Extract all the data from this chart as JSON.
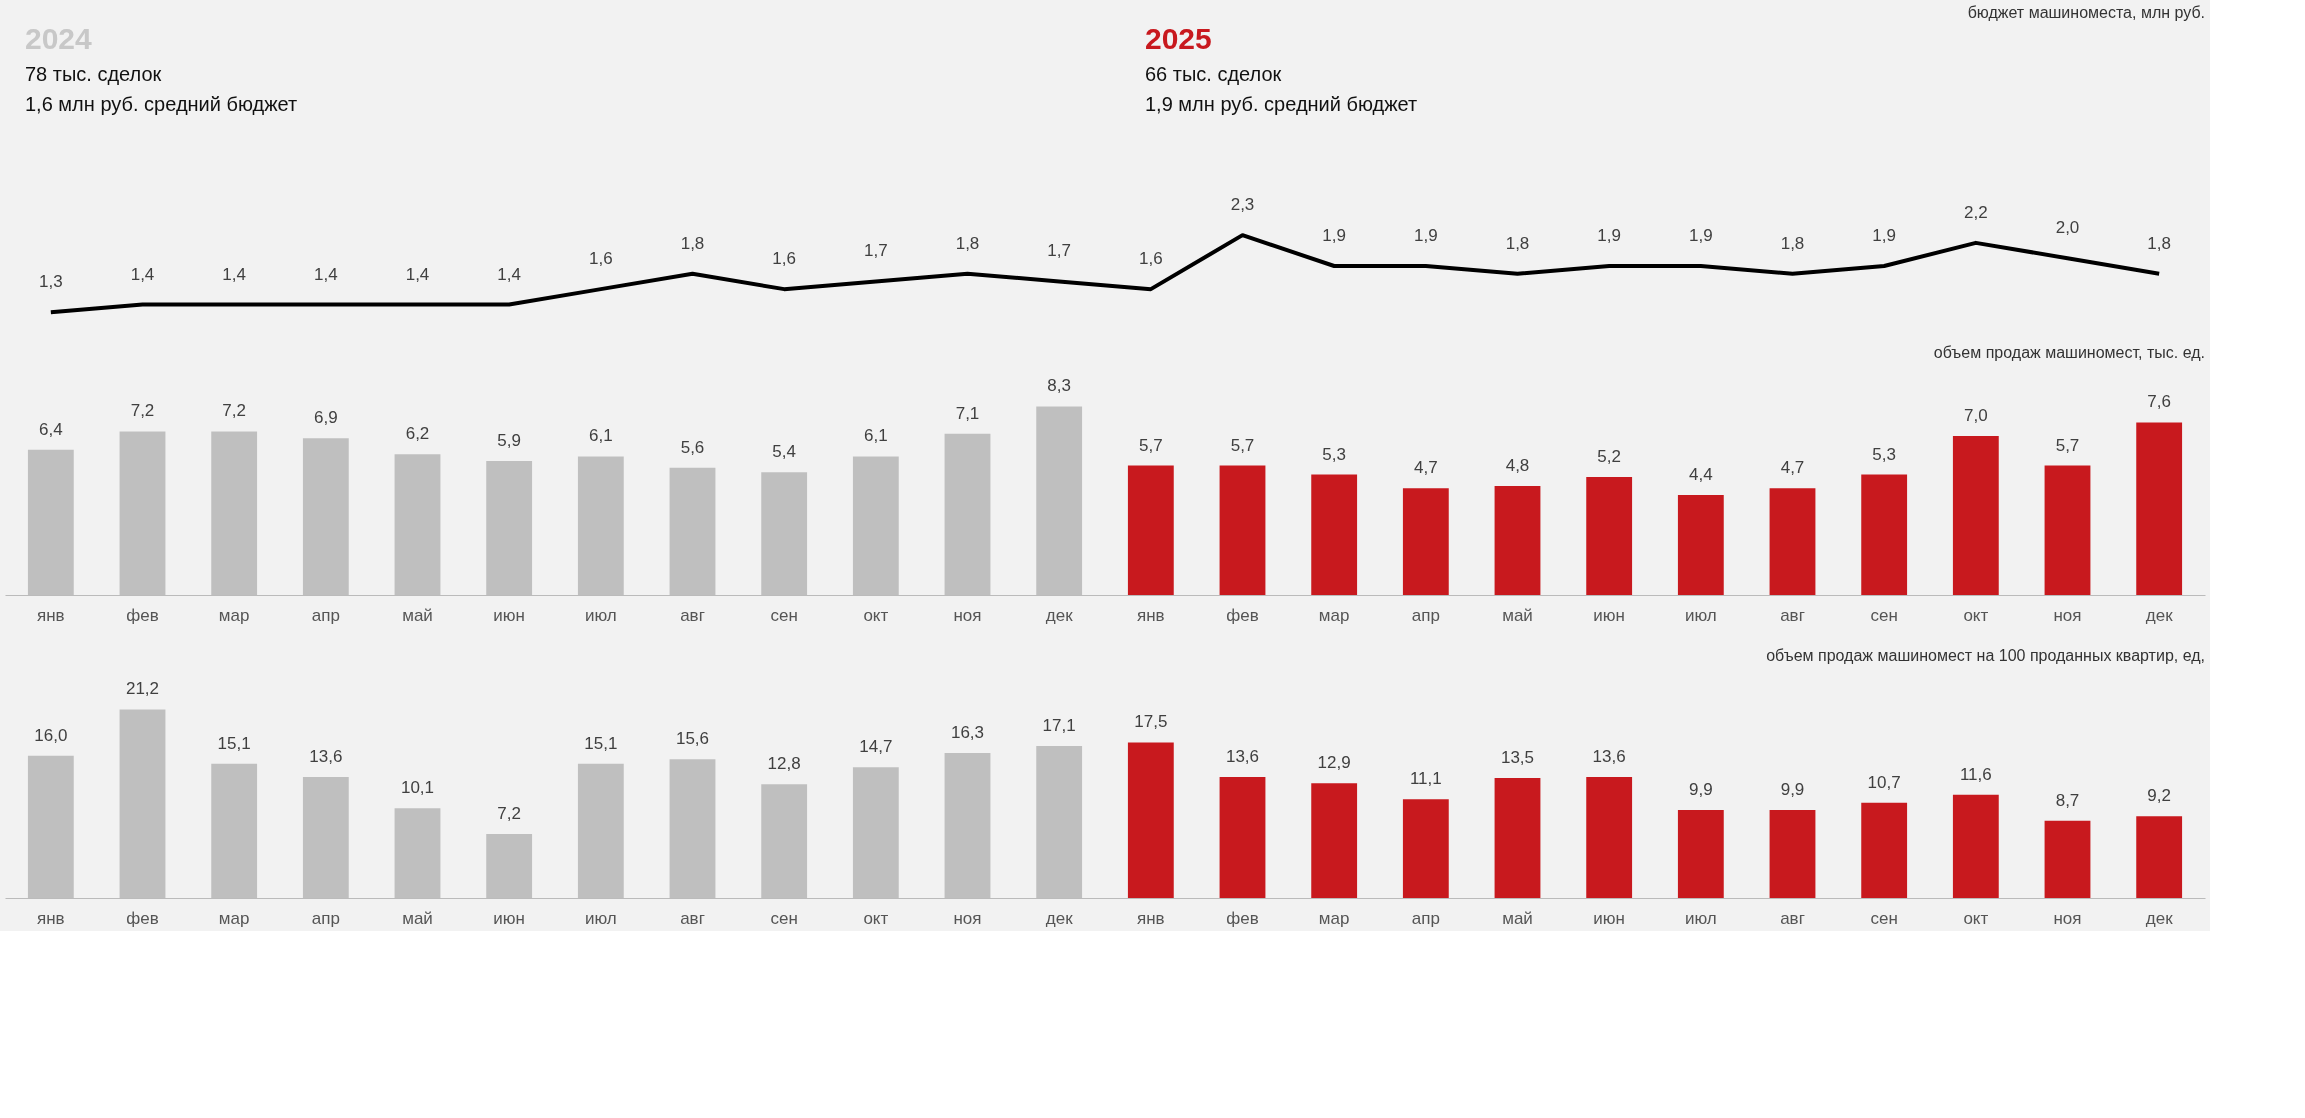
{
  "chart_data": [
    {
      "type": "line",
      "title": "бюджет машиноместа, млн руб.",
      "categories": [
        null,
        null,
        null,
        null,
        null,
        null,
        null,
        null,
        null,
        null,
        null,
        null,
        null,
        null,
        null,
        null,
        null,
        null,
        null,
        null,
        null,
        null,
        null,
        null
      ],
      "tick_labels": false,
      "marker": "none",
      "series": [
        {
          "color": "#000000",
          "values": [
            1.3,
            1.4,
            1.4,
            1.4,
            1.4,
            1.4,
            1.6,
            1.8,
            1.6,
            1.7,
            1.8,
            1.7,
            1.6,
            2.3,
            1.9,
            1.9,
            1.8,
            1.9,
            1.9,
            1.8,
            1.9,
            2.2,
            2.0,
            1.8
          ],
          "value_labels": [
            "1,3",
            "1,4",
            "1,4",
            "1,4",
            "1,4",
            "1,4",
            "1,6",
            "1,8",
            "1,6",
            "1,7",
            "1,8",
            "1,7",
            "1,6",
            "2,3",
            "1,9",
            "1,9",
            "1,8",
            "1,9",
            "1,9",
            "1,8",
            "1,9",
            "2,2",
            "2,0",
            "1,8"
          ]
        }
      ],
      "annotations": [
        "2024",
        "78 тыс. сделок",
        "1,6 млн руб. средний бюджет",
        "2025",
        "66 тыс. сделок",
        "1,9 млн руб. средний бюджет"
      ]
    },
    {
      "type": "bar",
      "title": "объем продаж машиномест, тыс. ед.",
      "categories": [
        "янв",
        "фев",
        "мар",
        "апр",
        "май",
        "июн",
        "июл",
        "авг",
        "сен",
        "окт",
        "ноя",
        "дек",
        "янв",
        "фев",
        "мар",
        "апр",
        "май",
        "июн",
        "июл",
        "авг",
        "сен",
        "окт",
        "ноя",
        "дек"
      ],
      "tick_labels": "x",
      "values": [
        6.4,
        7.2,
        7.2,
        6.9,
        6.2,
        5.9,
        6.1,
        5.6,
        5.4,
        6.1,
        7.1,
        8.3,
        5.7,
        5.7,
        5.3,
        4.7,
        4.8,
        5.2,
        4.4,
        4.7,
        5.3,
        7.0,
        5.7,
        7.6
      ],
      "value_labels": [
        "6,4",
        "7,2",
        "7,2",
        "6,9",
        "6,2",
        "5,9",
        "6,1",
        "5,6",
        "5,4",
        "6,1",
        "7,1",
        "8,3",
        "5,7",
        "5,7",
        "5,3",
        "4,7",
        "4,8",
        "5,2",
        "4,4",
        "4,7",
        "5,3",
        "7,0",
        "5,7",
        "7,6"
      ],
      "colors": [
        "#bfbfbf",
        "#bfbfbf",
        "#bfbfbf",
        "#bfbfbf",
        "#bfbfbf",
        "#bfbfbf",
        "#bfbfbf",
        "#bfbfbf",
        "#bfbfbf",
        "#bfbfbf",
        "#bfbfbf",
        "#bfbfbf",
        "#c8191e",
        "#c8191e",
        "#c8191e",
        "#c8191e",
        "#c8191e",
        "#c8191e",
        "#c8191e",
        "#c8191e",
        "#c8191e",
        "#c8191e",
        "#c8191e",
        "#c8191e"
      ]
    },
    {
      "type": "bar",
      "title": "объем продаж машиномест на 100 проданных квартир, ед,",
      "categories": [
        "янв",
        "фев",
        "мар",
        "апр",
        "май",
        "июн",
        "июл",
        "авг",
        "сен",
        "окт",
        "ноя",
        "дек",
        "янв",
        "фев",
        "мар",
        "апр",
        "май",
        "июн",
        "июл",
        "авг",
        "сен",
        "окт",
        "ноя",
        "дек"
      ],
      "tick_labels": "x",
      "values": [
        16.0,
        21.2,
        15.1,
        13.6,
        10.1,
        7.2,
        15.1,
        15.6,
        12.8,
        14.7,
        16.3,
        17.1,
        17.5,
        13.6,
        12.9,
        11.1,
        13.5,
        13.6,
        9.9,
        9.9,
        10.7,
        11.6,
        8.7,
        9.2
      ],
      "value_labels": [
        "16,0",
        "21,2",
        "15,1",
        "13,6",
        "10,1",
        "7,2",
        "15,1",
        "15,6",
        "12,8",
        "14,7",
        "16,3",
        "17,1",
        "17,5",
        "13,6",
        "12,9",
        "11,1",
        "13,5",
        "13,6",
        "9,9",
        "9,9",
        "10,7",
        "11,6",
        "8,7",
        "9,2"
      ],
      "colors": [
        "#bfbfbf",
        "#bfbfbf",
        "#bfbfbf",
        "#bfbfbf",
        "#bfbfbf",
        "#bfbfbf",
        "#bfbfbf",
        "#bfbfbf",
        "#bfbfbf",
        "#bfbfbf",
        "#bfbfbf",
        "#bfbfbf",
        "#c8191e",
        "#c8191e",
        "#c8191e",
        "#c8191e",
        "#c8191e",
        "#c8191e",
        "#c8191e",
        "#c8191e",
        "#c8191e",
        "#c8191e",
        "#c8191e",
        "#c8191e"
      ]
    }
  ]
}
